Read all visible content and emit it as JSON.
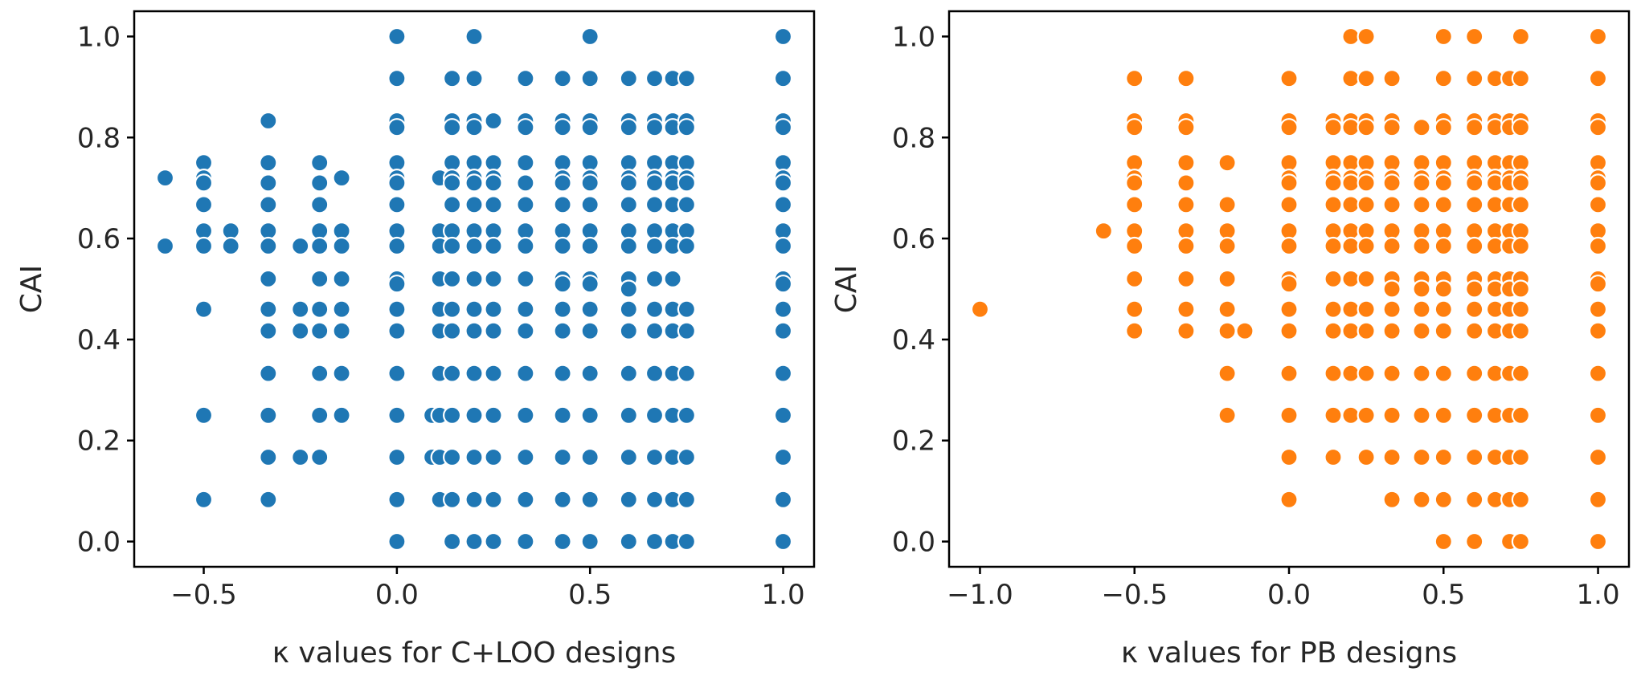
{
  "chart_data": [
    {
      "type": "scatter",
      "xlabel": "κ values for C+LOO designs",
      "ylabel": "CAI",
      "xlim": [
        -0.68,
        1.08
      ],
      "ylim": [
        -0.05,
        1.05
      ],
      "xticks": [
        "−0.5",
        "0.0",
        "0.5",
        "1.0"
      ],
      "xtick_values": [
        -0.5,
        0.0,
        0.5,
        1.0
      ],
      "yticks": [
        "0.0",
        "0.2",
        "0.4",
        "0.6",
        "0.8",
        "1.0"
      ],
      "ytick_values": [
        0.0,
        0.2,
        0.4,
        0.6,
        0.8,
        1.0
      ],
      "color": "#1f77b4",
      "columns": [
        {
          "x": -0.6,
          "y": [
            0.72,
            0.585
          ]
        },
        {
          "x": -0.5,
          "y": [
            0.75,
            0.72,
            0.71,
            0.667,
            0.615,
            0.585,
            0.46,
            0.25,
            0.083
          ]
        },
        {
          "x": -0.43,
          "y": [
            0.615,
            0.585
          ]
        },
        {
          "x": -0.333,
          "y": [
            0.833,
            0.75,
            0.71,
            0.667,
            0.615,
            0.585,
            0.52,
            0.46,
            0.417,
            0.333,
            0.25,
            0.167,
            0.083
          ]
        },
        {
          "x": -0.25,
          "y": [
            0.585,
            0.46,
            0.417,
            0.167
          ]
        },
        {
          "x": -0.2,
          "y": [
            0.75,
            0.71,
            0.667,
            0.615,
            0.585,
            0.52,
            0.46,
            0.417,
            0.333,
            0.25,
            0.167
          ]
        },
        {
          "x": -0.143,
          "y": [
            0.72,
            0.615,
            0.585,
            0.52,
            0.46,
            0.417,
            0.333,
            0.25
          ]
        },
        {
          "x": 0.0,
          "y": [
            1.0,
            0.917,
            0.833,
            0.82,
            0.75,
            0.72,
            0.71,
            0.667,
            0.615,
            0.585,
            0.52,
            0.51,
            0.46,
            0.417,
            0.333,
            0.25,
            0.167,
            0.083,
            0.0
          ]
        },
        {
          "x": 0.091,
          "y": [
            0.25,
            0.167
          ]
        },
        {
          "x": 0.111,
          "y": [
            0.72,
            0.615,
            0.585,
            0.52,
            0.46,
            0.417,
            0.333,
            0.25,
            0.167,
            0.083
          ]
        },
        {
          "x": 0.143,
          "y": [
            0.917,
            0.833,
            0.82,
            0.75,
            0.72,
            0.71,
            0.667,
            0.615,
            0.585,
            0.52,
            0.46,
            0.417,
            0.333,
            0.25,
            0.167,
            0.083,
            0.0
          ]
        },
        {
          "x": 0.2,
          "y": [
            1.0,
            0.917,
            0.833,
            0.82,
            0.75,
            0.72,
            0.71,
            0.667,
            0.615,
            0.585,
            0.52,
            0.46,
            0.417,
            0.333,
            0.25,
            0.167,
            0.083,
            0.0
          ]
        },
        {
          "x": 0.25,
          "y": [
            0.833,
            0.75,
            0.72,
            0.71,
            0.667,
            0.615,
            0.585,
            0.52,
            0.46,
            0.417,
            0.333,
            0.25,
            0.167,
            0.083,
            0.0
          ]
        },
        {
          "x": 0.333,
          "y": [
            0.917,
            0.833,
            0.82,
            0.75,
            0.71,
            0.667,
            0.615,
            0.585,
            0.52,
            0.46,
            0.417,
            0.333,
            0.25,
            0.167,
            0.083,
            0.0
          ]
        },
        {
          "x": 0.429,
          "y": [
            0.917,
            0.833,
            0.82,
            0.75,
            0.72,
            0.71,
            0.667,
            0.615,
            0.585,
            0.52,
            0.51,
            0.46,
            0.417,
            0.333,
            0.25,
            0.167,
            0.083,
            0.0
          ]
        },
        {
          "x": 0.5,
          "y": [
            1.0,
            0.917,
            0.833,
            0.82,
            0.75,
            0.72,
            0.71,
            0.667,
            0.615,
            0.585,
            0.52,
            0.51,
            0.46,
            0.417,
            0.333,
            0.25,
            0.167,
            0.083,
            0.0
          ]
        },
        {
          "x": 0.6,
          "y": [
            0.917,
            0.833,
            0.82,
            0.75,
            0.72,
            0.71,
            0.667,
            0.615,
            0.585,
            0.52,
            0.5,
            0.46,
            0.417,
            0.333,
            0.25,
            0.167,
            0.083,
            0.0
          ]
        },
        {
          "x": 0.667,
          "y": [
            0.917,
            0.833,
            0.82,
            0.75,
            0.72,
            0.71,
            0.667,
            0.615,
            0.585,
            0.52,
            0.46,
            0.417,
            0.333,
            0.25,
            0.167,
            0.083,
            0.0
          ]
        },
        {
          "x": 0.714,
          "y": [
            0.917,
            0.833,
            0.82,
            0.75,
            0.72,
            0.71,
            0.667,
            0.615,
            0.585,
            0.52,
            0.46,
            0.417,
            0.333,
            0.25,
            0.167,
            0.083,
            0.0
          ]
        },
        {
          "x": 0.75,
          "y": [
            0.917,
            0.833,
            0.82,
            0.75,
            0.72,
            0.71,
            0.667,
            0.615,
            0.585,
            0.46,
            0.417,
            0.333,
            0.25,
            0.167,
            0.083,
            0.0
          ]
        },
        {
          "x": 1.0,
          "y": [
            1.0,
            0.917,
            0.833,
            0.82,
            0.75,
            0.72,
            0.71,
            0.667,
            0.615,
            0.585,
            0.52,
            0.51,
            0.46,
            0.417,
            0.333,
            0.25,
            0.167,
            0.083,
            0.0
          ]
        }
      ]
    },
    {
      "type": "scatter",
      "xlabel": "κ values for PB designs",
      "ylabel": "CAI",
      "xlim": [
        -1.1,
        1.1
      ],
      "ylim": [
        -0.05,
        1.05
      ],
      "xticks": [
        "−1.0",
        "−0.5",
        "0.0",
        "0.5",
        "1.0"
      ],
      "xtick_values": [
        -1.0,
        -0.5,
        0.0,
        0.5,
        1.0
      ],
      "yticks": [
        "0.0",
        "0.2",
        "0.4",
        "0.6",
        "0.8",
        "1.0"
      ],
      "ytick_values": [
        0.0,
        0.2,
        0.4,
        0.6,
        0.8,
        1.0
      ],
      "color": "#ff7f0e",
      "columns": [
        {
          "x": -1.0,
          "y": [
            0.46
          ]
        },
        {
          "x": -0.6,
          "y": [
            0.615
          ]
        },
        {
          "x": -0.5,
          "y": [
            0.917,
            0.833,
            0.82,
            0.75,
            0.72,
            0.71,
            0.667,
            0.615,
            0.585,
            0.52,
            0.46,
            0.417
          ]
        },
        {
          "x": -0.333,
          "y": [
            0.917,
            0.833,
            0.82,
            0.75,
            0.71,
            0.667,
            0.615,
            0.585,
            0.52,
            0.46,
            0.417
          ]
        },
        {
          "x": -0.2,
          "y": [
            0.75,
            0.667,
            0.615,
            0.585,
            0.52,
            0.46,
            0.417,
            0.333,
            0.25
          ]
        },
        {
          "x": -0.143,
          "y": [
            0.417
          ]
        },
        {
          "x": 0.0,
          "y": [
            0.917,
            0.833,
            0.82,
            0.75,
            0.72,
            0.71,
            0.667,
            0.615,
            0.585,
            0.52,
            0.51,
            0.46,
            0.417,
            0.333,
            0.25,
            0.167,
            0.083
          ]
        },
        {
          "x": 0.143,
          "y": [
            0.833,
            0.82,
            0.75,
            0.72,
            0.71,
            0.667,
            0.615,
            0.585,
            0.52,
            0.46,
            0.417,
            0.333,
            0.25,
            0.167
          ]
        },
        {
          "x": 0.2,
          "y": [
            1.0,
            0.917,
            0.833,
            0.82,
            0.75,
            0.72,
            0.71,
            0.667,
            0.615,
            0.585,
            0.52,
            0.46,
            0.417,
            0.333,
            0.25
          ]
        },
        {
          "x": 0.25,
          "y": [
            1.0,
            0.917,
            0.833,
            0.82,
            0.75,
            0.72,
            0.71,
            0.667,
            0.615,
            0.585,
            0.52,
            0.46,
            0.417,
            0.333,
            0.25,
            0.167
          ]
        },
        {
          "x": 0.333,
          "y": [
            0.917,
            0.833,
            0.82,
            0.75,
            0.72,
            0.71,
            0.667,
            0.615,
            0.585,
            0.52,
            0.5,
            0.46,
            0.417,
            0.333,
            0.25,
            0.167,
            0.083
          ]
        },
        {
          "x": 0.429,
          "y": [
            0.82,
            0.75,
            0.72,
            0.71,
            0.667,
            0.615,
            0.585,
            0.52,
            0.5,
            0.46,
            0.417,
            0.333,
            0.25,
            0.167,
            0.083
          ]
        },
        {
          "x": 0.5,
          "y": [
            1.0,
            0.917,
            0.833,
            0.82,
            0.75,
            0.72,
            0.71,
            0.667,
            0.615,
            0.585,
            0.52,
            0.5,
            0.46,
            0.417,
            0.333,
            0.25,
            0.167,
            0.083,
            0.0
          ]
        },
        {
          "x": 0.6,
          "y": [
            1.0,
            0.917,
            0.833,
            0.82,
            0.75,
            0.72,
            0.71,
            0.667,
            0.615,
            0.585,
            0.52,
            0.5,
            0.46,
            0.417,
            0.333,
            0.25,
            0.167,
            0.083,
            0.0
          ]
        },
        {
          "x": 0.667,
          "y": [
            0.917,
            0.833,
            0.82,
            0.75,
            0.72,
            0.71,
            0.667,
            0.615,
            0.585,
            0.52,
            0.5,
            0.46,
            0.417,
            0.333,
            0.25,
            0.167,
            0.083
          ]
        },
        {
          "x": 0.714,
          "y": [
            0.917,
            0.833,
            0.82,
            0.75,
            0.72,
            0.71,
            0.667,
            0.615,
            0.585,
            0.52,
            0.5,
            0.46,
            0.417,
            0.333,
            0.25,
            0.167,
            0.083,
            0.0
          ]
        },
        {
          "x": 0.75,
          "y": [
            1.0,
            0.917,
            0.833,
            0.82,
            0.75,
            0.72,
            0.71,
            0.667,
            0.615,
            0.585,
            0.52,
            0.5,
            0.46,
            0.417,
            0.333,
            0.25,
            0.167,
            0.083,
            0.0
          ]
        },
        {
          "x": 1.0,
          "y": [
            1.0,
            0.917,
            0.833,
            0.82,
            0.75,
            0.72,
            0.71,
            0.667,
            0.615,
            0.585,
            0.52,
            0.51,
            0.46,
            0.417,
            0.333,
            0.25,
            0.167,
            0.083,
            0.0
          ]
        }
      ]
    }
  ]
}
